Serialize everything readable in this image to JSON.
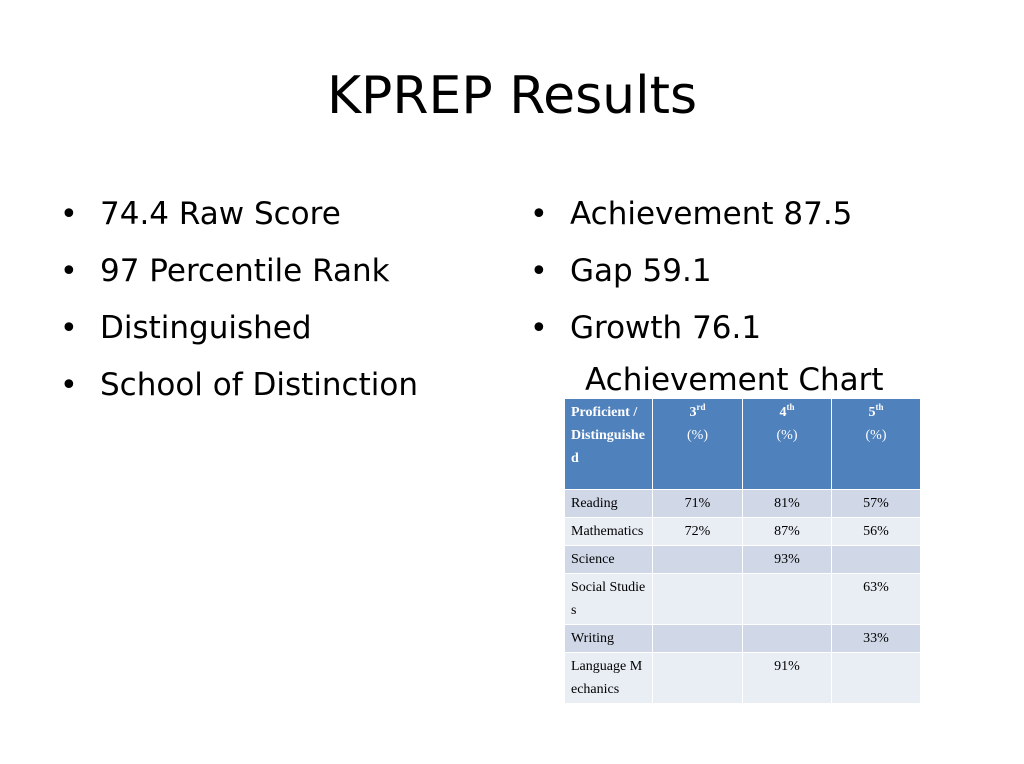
{
  "slide": {
    "title": "KPREP Results",
    "left_bullets": [
      "74.4 Raw Score",
      "97 Percentile Rank",
      "Distinguished",
      "School of Distinction"
    ],
    "right_bullets": [
      "Achievement 87.5",
      "Gap 59.1",
      "Growth 76.1"
    ],
    "chart_title": "Achievement Chart"
  },
  "table": {
    "corner_header": "Proficient / Distinguished",
    "grades": [
      {
        "num": "3",
        "suffix": "rd",
        "unit": "(%)"
      },
      {
        "num": "4",
        "suffix": "th",
        "unit": "(%)"
      },
      {
        "num": "5",
        "suffix": "th",
        "unit": "(%)"
      }
    ],
    "rows": [
      {
        "subject": "Reading",
        "g3": "71%",
        "g4": "81%",
        "g5": "57%"
      },
      {
        "subject": "Mathematics",
        "g3": "72%",
        "g4": "87%",
        "g5": "56%"
      },
      {
        "subject": "Science",
        "g3": "",
        "g4": "93%",
        "g5": ""
      },
      {
        "subject": "Social Studies",
        "g3": "",
        "g4": "",
        "g5": "63%"
      },
      {
        "subject": "Writing",
        "g3": "",
        "g4": "",
        "g5": "33%"
      },
      {
        "subject": "Language Mechanics",
        "g3": "",
        "g4": "91%",
        "g5": ""
      }
    ]
  },
  "colors": {
    "header_bg": "#4f81bd",
    "row_odd_bg": "#d0d8e8",
    "row_even_bg": "#e9edf4"
  }
}
